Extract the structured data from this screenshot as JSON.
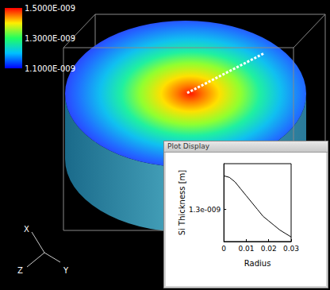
{
  "color_bar": {
    "range": [
      1.1e-09,
      1.5e-09
    ],
    "ticks": [
      {
        "value": 1.5e-09,
        "label": "1.5000E-009"
      },
      {
        "value": 1.3e-09,
        "label": "1.3000E-009"
      },
      {
        "value": 1.1e-09,
        "label": "1.1000E-009"
      }
    ]
  },
  "axis_triad": [
    "X",
    "Z",
    "Y"
  ],
  "window_title": "Plot Display",
  "chart_data": {
    "type": "line",
    "x": [
      0,
      0.0025,
      0.005,
      0.0075,
      0.01,
      0.0125,
      0.015,
      0.0175,
      0.02,
      0.0225,
      0.025,
      0.0275,
      0.03
    ],
    "values": [
      1.447e-09,
      1.44e-09,
      1.42e-09,
      1.39e-09,
      1.36e-09,
      1.33e-09,
      1.3e-09,
      1.27e-09,
      1.25e-09,
      1.23e-09,
      1.21e-09,
      1.195e-09,
      1.18e-09
    ],
    "color": "#000000",
    "xlabel": "Radius",
    "ylabel": "Si Thickness [m]",
    "xlim": [
      0,
      0.03
    ],
    "ylim": [
      1.16e-09,
      1.5e-09
    ],
    "xticks": [
      0,
      0.01,
      0.02,
      0.03
    ],
    "yticks": [
      {
        "value": 1.3e-09,
        "label": "1.3e-009"
      }
    ],
    "grid": false
  }
}
